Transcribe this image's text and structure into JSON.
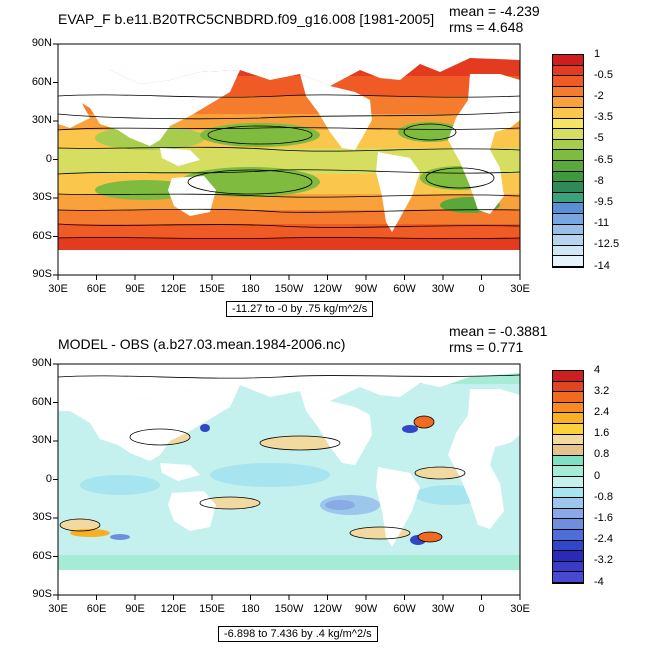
{
  "top_panel": {
    "title": "EVAP_F b.e11.B20TRC5CNBDRD.f09_g16.008 [1981-2005]",
    "mean_text": "mean = -4.239",
    "rms_text": "rms = 4.648",
    "info_text": "-11.27 to -0 by .75 kg/m^2/s",
    "colorbar": {
      "labels": [
        "1",
        "-0.5",
        "-2",
        "-3.5",
        "-5",
        "-6.5",
        "-8",
        "-9.5",
        "-11",
        "-12.5",
        "-14"
      ],
      "colors": [
        "#d01c1c",
        "#e33a20",
        "#f05a24",
        "#f47c2c",
        "#f9a13a",
        "#fbc64c",
        "#f4e466",
        "#d6de62",
        "#a8cc4e",
        "#7ebb3e",
        "#5aa83a",
        "#3d9a3c",
        "#2e8a58",
        "#3aa37e",
        "#5890d8",
        "#77a6e0",
        "#98bfe8",
        "#b6d6ef",
        "#cfe6f5",
        "#e6f3fb"
      ]
    }
  },
  "bottom_panel": {
    "title": "MODEL - OBS (a.b27.03.mean.1984-2006.nc)",
    "mean_text": "mean = -0.3881",
    "rms_text": "rms = 0.771",
    "info_text": "-6.898 to 7.436 by .4 kg/m^2/s",
    "colorbar": {
      "labels": [
        "4",
        "3.2",
        "2.4",
        "1.6",
        "0.8",
        "0",
        "-0.8",
        "-1.6",
        "-2.4",
        "-3.2",
        "-4"
      ],
      "colors": [
        "#cc1f1f",
        "#e0461e",
        "#f26a1f",
        "#f78c22",
        "#fab024",
        "#fad33c",
        "#f1d9a0",
        "#e6c28e",
        "#7fe0c4",
        "#a6ebd6",
        "#c4f1ee",
        "#a6e4f0",
        "#9cc6ec",
        "#8aaae6",
        "#6e8fe0",
        "#4d6ed8",
        "#3246c8",
        "#2a2ab8",
        "#3b3bc8",
        "#4848d0"
      ]
    }
  },
  "lat_labels": [
    "90N",
    "60N",
    "30N",
    "0",
    "30S",
    "60S",
    "90S"
  ],
  "lon_labels": [
    "30E",
    "60E",
    "90E",
    "120E",
    "150E",
    "180",
    "150W",
    "120W",
    "90W",
    "60W",
    "30W",
    "0",
    "30E"
  ]
}
